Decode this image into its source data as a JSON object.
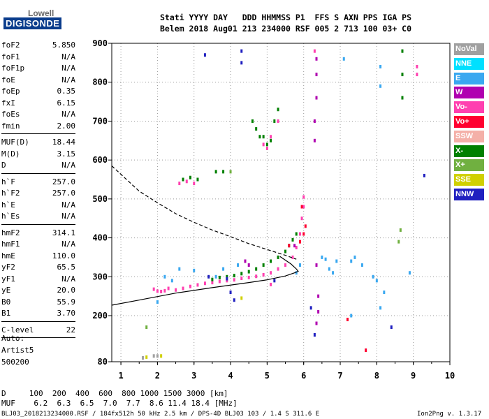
{
  "logo": {
    "line1": "Lowell",
    "line2": "DIGISONDE"
  },
  "header": {
    "line1": "Stati YYYY DAY   DDD HHMMSS P1  FFS S AXN PPS IGA PS",
    "line2": "Belem 2018 Aug01 213 234000 RSF 005 2 713 100 03+ C0"
  },
  "params": [
    {
      "label": "foF2",
      "value": "5.850"
    },
    {
      "label": "foF1",
      "value": "N/A"
    },
    {
      "label": "foF1p",
      "value": "N/A"
    },
    {
      "label": "foE",
      "value": "N/A"
    },
    {
      "label": "foEp",
      "value": "0.35"
    },
    {
      "label": "fxI",
      "value": "6.15"
    },
    {
      "label": "foEs",
      "value": "N/A"
    },
    {
      "label": "fmin",
      "value": "2.00"
    },
    {
      "label": "MUF(D)",
      "value": "18.44"
    },
    {
      "label": "M(D)",
      "value": "3.15"
    },
    {
      "label": "D",
      "value": "N/A"
    },
    {
      "label": "h`F",
      "value": "257.0"
    },
    {
      "label": "h`F2",
      "value": "257.0"
    },
    {
      "label": "h`E",
      "value": "N/A"
    },
    {
      "label": "h`Es",
      "value": "N/A"
    },
    {
      "label": "hmF2",
      "value": "314.1"
    },
    {
      "label": "hmF1",
      "value": "N/A"
    },
    {
      "label": "hmE",
      "value": "110.0"
    },
    {
      "label": "yF2",
      "value": "65.5"
    },
    {
      "label": "yF1",
      "value": "N/A"
    },
    {
      "label": "yE",
      "value": "20.0"
    },
    {
      "label": "B0",
      "value": "55.9"
    },
    {
      "label": "B1",
      "value": "3.70"
    },
    {
      "label": "C-level",
      "value": "22"
    }
  ],
  "auto": {
    "line1": "Auto:",
    "line2": "Artist5",
    "line3": "500200"
  },
  "legend": [
    {
      "label": "NoVal",
      "color": "#a0a0a0"
    },
    {
      "label": "NNE",
      "color": "#00e0ff"
    },
    {
      "label": "E",
      "color": "#3aa8f0"
    },
    {
      "label": "W",
      "color": "#b000b0"
    },
    {
      "label": "Vo-",
      "color": "#ff40b0"
    },
    {
      "label": "Vo+",
      "color": "#ff0030"
    },
    {
      "label": "SSW",
      "color": "#f4b0a8"
    },
    {
      "label": "X-",
      "color": "#008000"
    },
    {
      "label": "X+",
      "color": "#70b040"
    },
    {
      "label": "SSE",
      "color": "#d0d000"
    },
    {
      "label": "NNW",
      "color": "#2020c0"
    }
  ],
  "footer": {
    "d_line": "D     100  200  400  600  800 1000 1500 3000 [km]",
    "muf_line": "MUF    6.2  6.3  6.5  7.0  7.7  8.6 11.4 18.4 [MHz]",
    "file_info": "BLJ03_2018213234000.RSF / 184fx512h 50 kHz 2.5 km / DPS-4D BLJ03 103 / 1.4 S 311.6 E",
    "version": "Ion2Png v. 1.3.17"
  },
  "chart_data": {
    "type": "scatter",
    "title": "",
    "xlabel": "",
    "ylabel": "",
    "xlim": [
      0.75,
      10
    ],
    "ylim": [
      80,
      900
    ],
    "x_ticks": [
      1,
      2,
      3,
      4,
      5,
      6,
      7,
      8,
      9,
      10
    ],
    "y_ticks": [
      80,
      200,
      300,
      400,
      500,
      600,
      700,
      800,
      900
    ],
    "grid": "dotted",
    "legend_position": "right",
    "series": [
      {
        "color": "#ff40b0",
        "points": [
          [
            1.9,
            268
          ],
          [
            2.0,
            263
          ],
          [
            2.1,
            262
          ],
          [
            2.2,
            264
          ],
          [
            2.3,
            270
          ],
          [
            2.5,
            266
          ],
          [
            2.7,
            270
          ],
          [
            2.9,
            275
          ],
          [
            3.1,
            279
          ],
          [
            3.3,
            283
          ],
          [
            3.5,
            285
          ],
          [
            3.7,
            288
          ],
          [
            3.9,
            290
          ],
          [
            4.1,
            292
          ],
          [
            4.3,
            296
          ],
          [
            4.5,
            298
          ],
          [
            4.7,
            301
          ],
          [
            4.9,
            305
          ],
          [
            5.1,
            310
          ],
          [
            5.3,
            320
          ],
          [
            5.5,
            330
          ],
          [
            5.7,
            350
          ],
          [
            5.8,
            375
          ],
          [
            5.9,
            410
          ],
          [
            5.95,
            450
          ],
          [
            6.0,
            480
          ],
          [
            6.0,
            505
          ]
        ]
      },
      {
        "color": "#008000",
        "points": [
          [
            3.5,
            293
          ],
          [
            3.7,
            298
          ],
          [
            3.9,
            300
          ],
          [
            4.1,
            303
          ],
          [
            4.3,
            308
          ],
          [
            4.5,
            313
          ],
          [
            4.7,
            320
          ],
          [
            4.9,
            330
          ],
          [
            5.1,
            340
          ],
          [
            5.3,
            350
          ],
          [
            5.5,
            365
          ],
          [
            5.6,
            380
          ],
          [
            5.7,
            395
          ],
          [
            5.8,
            410
          ]
        ]
      },
      {
        "color": "#3aa8f0",
        "points": [
          [
            2.0,
            235
          ],
          [
            2.2,
            300
          ],
          [
            2.4,
            290
          ],
          [
            2.6,
            320
          ],
          [
            3.0,
            316
          ],
          [
            3.6,
            300
          ],
          [
            3.8,
            320
          ],
          [
            4.2,
            330
          ],
          [
            5.8,
            310
          ],
          [
            5.9,
            330
          ],
          [
            6.5,
            350
          ],
          [
            6.6,
            345
          ],
          [
            6.7,
            320
          ],
          [
            6.8,
            310
          ],
          [
            6.9,
            340
          ],
          [
            7.3,
            340
          ],
          [
            7.4,
            350
          ],
          [
            7.6,
            330
          ],
          [
            7.9,
            300
          ],
          [
            8.0,
            290
          ],
          [
            8.1,
            220
          ],
          [
            8.9,
            310
          ],
          [
            7.1,
            860
          ],
          [
            8.1,
            840
          ],
          [
            8.1,
            790
          ],
          [
            7.3,
            200
          ],
          [
            8.2,
            260
          ]
        ]
      },
      {
        "color": "#b000b0",
        "points": [
          [
            6.35,
            860
          ],
          [
            6.35,
            820
          ],
          [
            6.35,
            760
          ],
          [
            6.3,
            700
          ],
          [
            6.3,
            650
          ],
          [
            6.35,
            330
          ],
          [
            6.4,
            250
          ],
          [
            6.4,
            210
          ],
          [
            6.35,
            180
          ],
          [
            5.75,
            380
          ],
          [
            4.5,
            330
          ],
          [
            4.4,
            340
          ]
        ]
      },
      {
        "color": "#008000",
        "points": [
          [
            4.6,
            700
          ],
          [
            4.7,
            680
          ],
          [
            4.8,
            660
          ],
          [
            4.9,
            660
          ],
          [
            5.0,
            640
          ],
          [
            5.1,
            650
          ],
          [
            5.2,
            700
          ],
          [
            5.3,
            730
          ],
          [
            8.7,
            880
          ],
          [
            8.7,
            820
          ],
          [
            8.7,
            760
          ],
          [
            2.7,
            550
          ],
          [
            2.9,
            555
          ],
          [
            3.1,
            550
          ],
          [
            3.6,
            570
          ],
          [
            3.8,
            570
          ]
        ]
      },
      {
        "color": "#ff40b0",
        "points": [
          [
            4.9,
            640
          ],
          [
            5.0,
            630
          ],
          [
            5.1,
            660
          ],
          [
            5.3,
            700
          ],
          [
            2.6,
            540
          ],
          [
            2.8,
            545
          ],
          [
            3.0,
            540
          ],
          [
            6.3,
            880
          ],
          [
            9.1,
            840
          ],
          [
            9.1,
            820
          ],
          [
            5.1,
            280
          ]
        ]
      },
      {
        "color": "#2020c0",
        "points": [
          [
            3.3,
            870
          ],
          [
            4.3,
            880
          ],
          [
            4.3,
            850
          ],
          [
            3.4,
            300
          ],
          [
            3.9,
            295
          ],
          [
            4.0,
            260
          ],
          [
            4.1,
            240
          ],
          [
            6.2,
            220
          ],
          [
            6.3,
            150
          ],
          [
            5.2,
            290
          ],
          [
            8.4,
            170
          ],
          [
            9.3,
            560
          ]
        ]
      },
      {
        "color": "#ff0030",
        "points": [
          [
            5.95,
            480
          ],
          [
            6.05,
            430
          ],
          [
            6.0,
            410
          ],
          [
            5.9,
            390
          ],
          [
            5.6,
            380
          ],
          [
            7.2,
            190
          ],
          [
            7.7,
            110
          ]
        ]
      },
      {
        "color": "#70b040",
        "points": [
          [
            8.65,
            420
          ],
          [
            8.6,
            390
          ],
          [
            4.0,
            570
          ],
          [
            1.7,
            170
          ]
        ]
      },
      {
        "color": "#d0d000",
        "points": [
          [
            1.7,
            92
          ],
          [
            2.1,
            95
          ],
          [
            4.3,
            245
          ]
        ]
      },
      {
        "color": "#a0a0a0",
        "points": [
          [
            1.9,
            95
          ],
          [
            2.0,
            95
          ],
          [
            1.6,
            90
          ]
        ]
      }
    ],
    "curves": [
      {
        "name": "",
        "style": "solid",
        "color": "#000000",
        "points": [
          [
            0.75,
            227
          ],
          [
            1.5,
            240
          ],
          [
            2.5,
            258
          ],
          [
            3.5,
            272
          ],
          [
            4.5,
            285
          ],
          [
            5.0,
            292
          ],
          [
            5.5,
            302
          ],
          [
            5.75,
            310
          ],
          [
            5.85,
            314
          ],
          [
            5.8,
            320
          ],
          [
            5.65,
            333
          ],
          [
            5.35,
            352
          ]
        ]
      },
      {
        "name": "",
        "style": "dashed",
        "color": "#000000",
        "points": [
          [
            0.75,
            585
          ],
          [
            1.5,
            520
          ],
          [
            2.0,
            490
          ],
          [
            2.5,
            462
          ],
          [
            3.0,
            440
          ],
          [
            3.5,
            420
          ],
          [
            4.0,
            403
          ],
          [
            4.5,
            385
          ],
          [
            5.0,
            370
          ],
          [
            5.5,
            355
          ],
          [
            5.8,
            345
          ]
        ]
      }
    ]
  }
}
